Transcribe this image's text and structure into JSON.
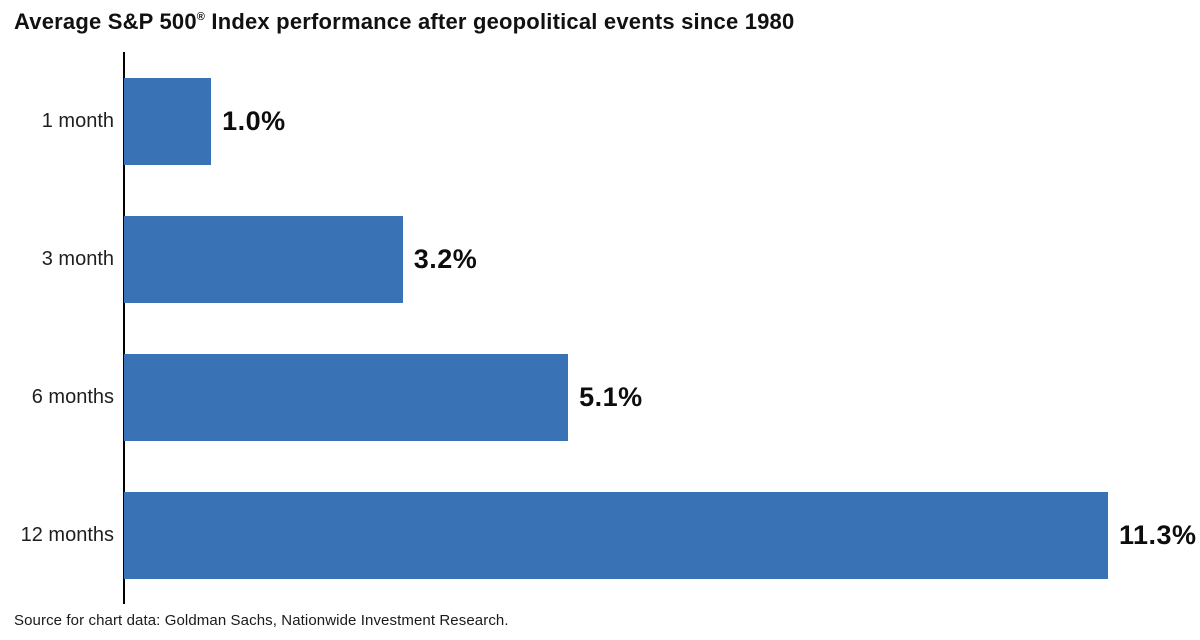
{
  "title": {
    "prefix": "Average S&P 500",
    "registered_mark": "®",
    "suffix": " Index performance after geopolitical events since 1980"
  },
  "colors": {
    "bar": "#3973b5",
    "axis": "#000000",
    "text": "#1a1a1a"
  },
  "chart_data": {
    "type": "bar",
    "orientation": "horizontal",
    "title": "Average S&P 500® Index performance after geopolitical events since 1980",
    "categories": [
      "1 month",
      "3 month",
      "6 months",
      "12 months"
    ],
    "values": [
      1.0,
      3.2,
      5.1,
      11.3
    ],
    "value_labels": [
      "1.0%",
      "3.2%",
      "5.1%",
      "11.3%"
    ],
    "unit": "%",
    "xlabel": "",
    "ylabel": "",
    "xlim": [
      0,
      11.3
    ],
    "grid": false,
    "legend": false,
    "value_labels_position": "right-of-bar",
    "source": "Source for chart data: Goldman Sachs, Nationwide Investment Research."
  }
}
